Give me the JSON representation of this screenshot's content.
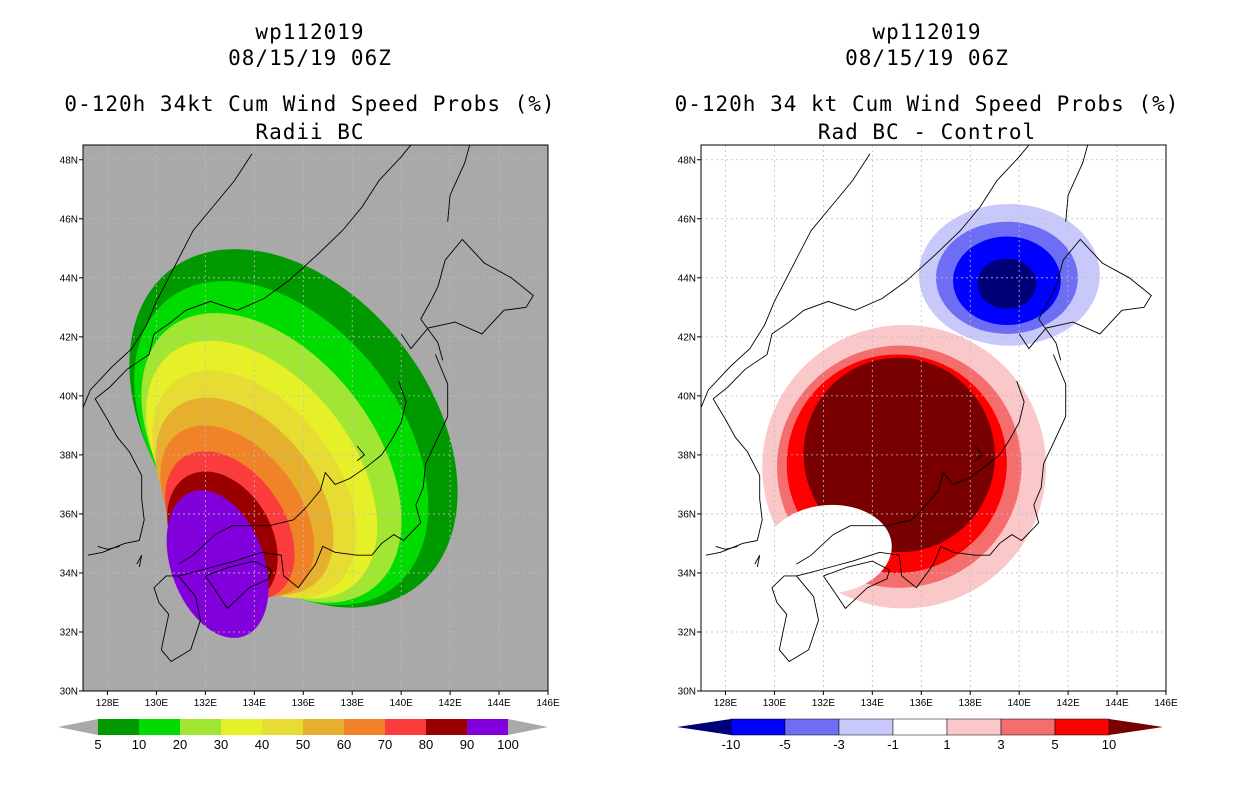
{
  "left_panel": {
    "storm_id": "wp112019",
    "datetime": "08/15/19 06Z",
    "title": "0-120h 34kt Cum Wind Speed Probs (%)",
    "subtitle": "Radii BC",
    "background_color": "#a9a9a9",
    "colorbar": {
      "labels": [
        "5",
        "10",
        "20",
        "30",
        "40",
        "50",
        "60",
        "70",
        "80",
        "90",
        "100"
      ],
      "colors": [
        "#009a00",
        "#00dc00",
        "#a0e632",
        "#e6f028",
        "#e6dc32",
        "#e6af2d",
        "#f08228",
        "#fa3c3c",
        "#9b0000",
        "#8200dc"
      ],
      "end_arrow_color": "#a9a9a9"
    }
  },
  "right_panel": {
    "storm_id": "wp112019",
    "datetime": "08/15/19 06Z",
    "title": "0-120h 34 kt Cum Wind Speed Probs (%)",
    "subtitle": "Rad BC - Control",
    "background_color": "#ffffff",
    "colorbar": {
      "labels": [
        "-10",
        "-5",
        "-3",
        "-1",
        "1",
        "3",
        "5",
        "10"
      ],
      "colors": [
        "#0000ff",
        "#6e6ef5",
        "#c8c8fa",
        "#ffffff",
        "#fac8c8",
        "#f56e6e",
        "#ff0000"
      ],
      "low_arrow_color": "#000078",
      "high_arrow_color": "#780000"
    }
  },
  "axes": {
    "lon_ticks": [
      "128E",
      "130E",
      "132E",
      "134E",
      "136E",
      "138E",
      "140E",
      "142E",
      "144E",
      "146E"
    ],
    "lat_ticks": [
      "30N",
      "32N",
      "34N",
      "36N",
      "38N",
      "40N",
      "42N",
      "44N",
      "46N",
      "48N"
    ],
    "lon_range": [
      127,
      146
    ],
    "lat_range": [
      30,
      48.5
    ]
  }
}
